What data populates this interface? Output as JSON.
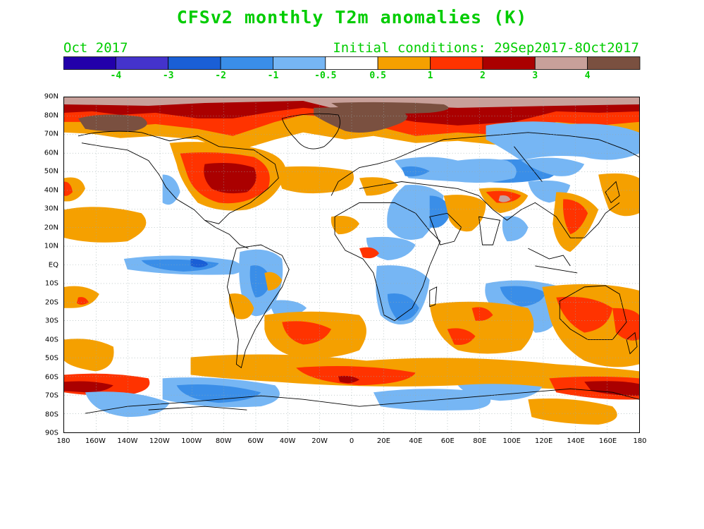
{
  "title": "CFSv2 monthly T2m anomalies (K)",
  "valid_month": "Oct 2017",
  "initial_conditions": "Initial conditions: 29Sep2017-8Oct2017",
  "colorbar": {
    "colors": [
      "#2200aa",
      "#4433cc",
      "#1a5fd6",
      "#3a8ee8",
      "#76b6f4",
      "#ffffff",
      "#f5a000",
      "#ff3300",
      "#aa0000",
      "#c8a09a",
      "#7a5040"
    ],
    "labels": [
      "-4",
      "-3",
      "-2",
      "-1",
      "-0.5",
      "0.5",
      "1",
      "2",
      "3",
      "4"
    ]
  },
  "map": {
    "lat_labels": [
      "90N",
      "80N",
      "70N",
      "60N",
      "50N",
      "40N",
      "30N",
      "20N",
      "10N",
      "EQ",
      "10S",
      "20S",
      "30S",
      "40S",
      "50S",
      "60S",
      "70S",
      "80S",
      "90S"
    ],
    "lon_labels": [
      "180",
      "160W",
      "140W",
      "120W",
      "100W",
      "80W",
      "60W",
      "40W",
      "20W",
      "0",
      "20E",
      "40E",
      "60E",
      "80E",
      "100E",
      "120E",
      "140E",
      "160E",
      "180"
    ],
    "grid": "dotted"
  }
}
